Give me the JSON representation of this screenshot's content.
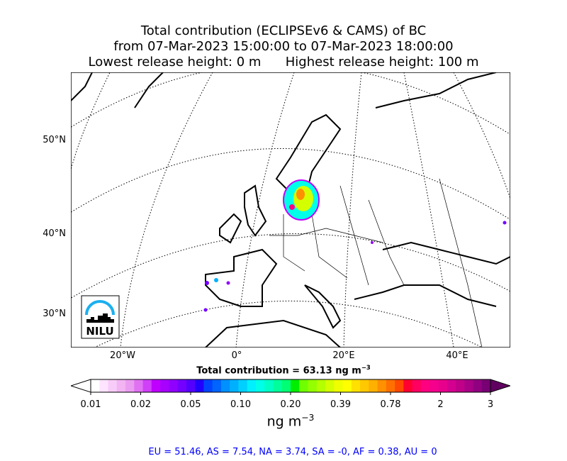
{
  "title": {
    "line1": "Total contribution (ECLIPSEv6 & CAMS) of BC",
    "line2": "from 07-Mar-2023 15:00:00 to 07-Mar-2023 18:00:00",
    "line3": "Lowest release height: 0 m      Highest release height: 100 m"
  },
  "map": {
    "lat_labels": [
      "50°N",
      "40°N",
      "30°N"
    ],
    "lon_labels": [
      "20°W",
      "0°",
      "20°E",
      "40°E"
    ],
    "logo_text": "NILU"
  },
  "colorbar": {
    "title_prefix": "Total contribution = 63.13 ng m",
    "title_exp": "−3",
    "ticks": [
      "0.01",
      "0.02",
      "0.05",
      "0.10",
      "0.20",
      "0.39",
      "0.78",
      "2",
      "3"
    ],
    "unit": "ng m",
    "unit_exp": "−3",
    "colors": [
      "#ffffff",
      "#ffe4ff",
      "#f8ccf8",
      "#f2b4f2",
      "#ea9cf0",
      "#e072f2",
      "#d040f8",
      "#c000ff",
      "#a800ff",
      "#9000ff",
      "#7400ff",
      "#5400ff",
      "#2000ff",
      "#0044ff",
      "#0064ff",
      "#0090ff",
      "#00b0ff",
      "#00d0ff",
      "#00f0ff",
      "#00ffe8",
      "#00ffc4",
      "#00ff9c",
      "#00ff74",
      "#00ee00",
      "#70ff00",
      "#94ff00",
      "#b4ff00",
      "#d4ff00",
      "#f0ff00",
      "#ffff00",
      "#ffe000",
      "#ffc800",
      "#ffb000",
      "#ff9000",
      "#ff7000",
      "#ff4800",
      "#ff0030",
      "#ff0060",
      "#ff0080",
      "#f5008c",
      "#e8008c",
      "#d40090",
      "#c00088",
      "#aa0088",
      "#900080",
      "#780074"
    ],
    "under_color": "#ffffff",
    "over_color": "#600060"
  },
  "regions_text": "EU = 51.46,  AS = 7.54,  NA = 3.74,  SA = -0,  AF = 0.38,  AU = 0"
}
